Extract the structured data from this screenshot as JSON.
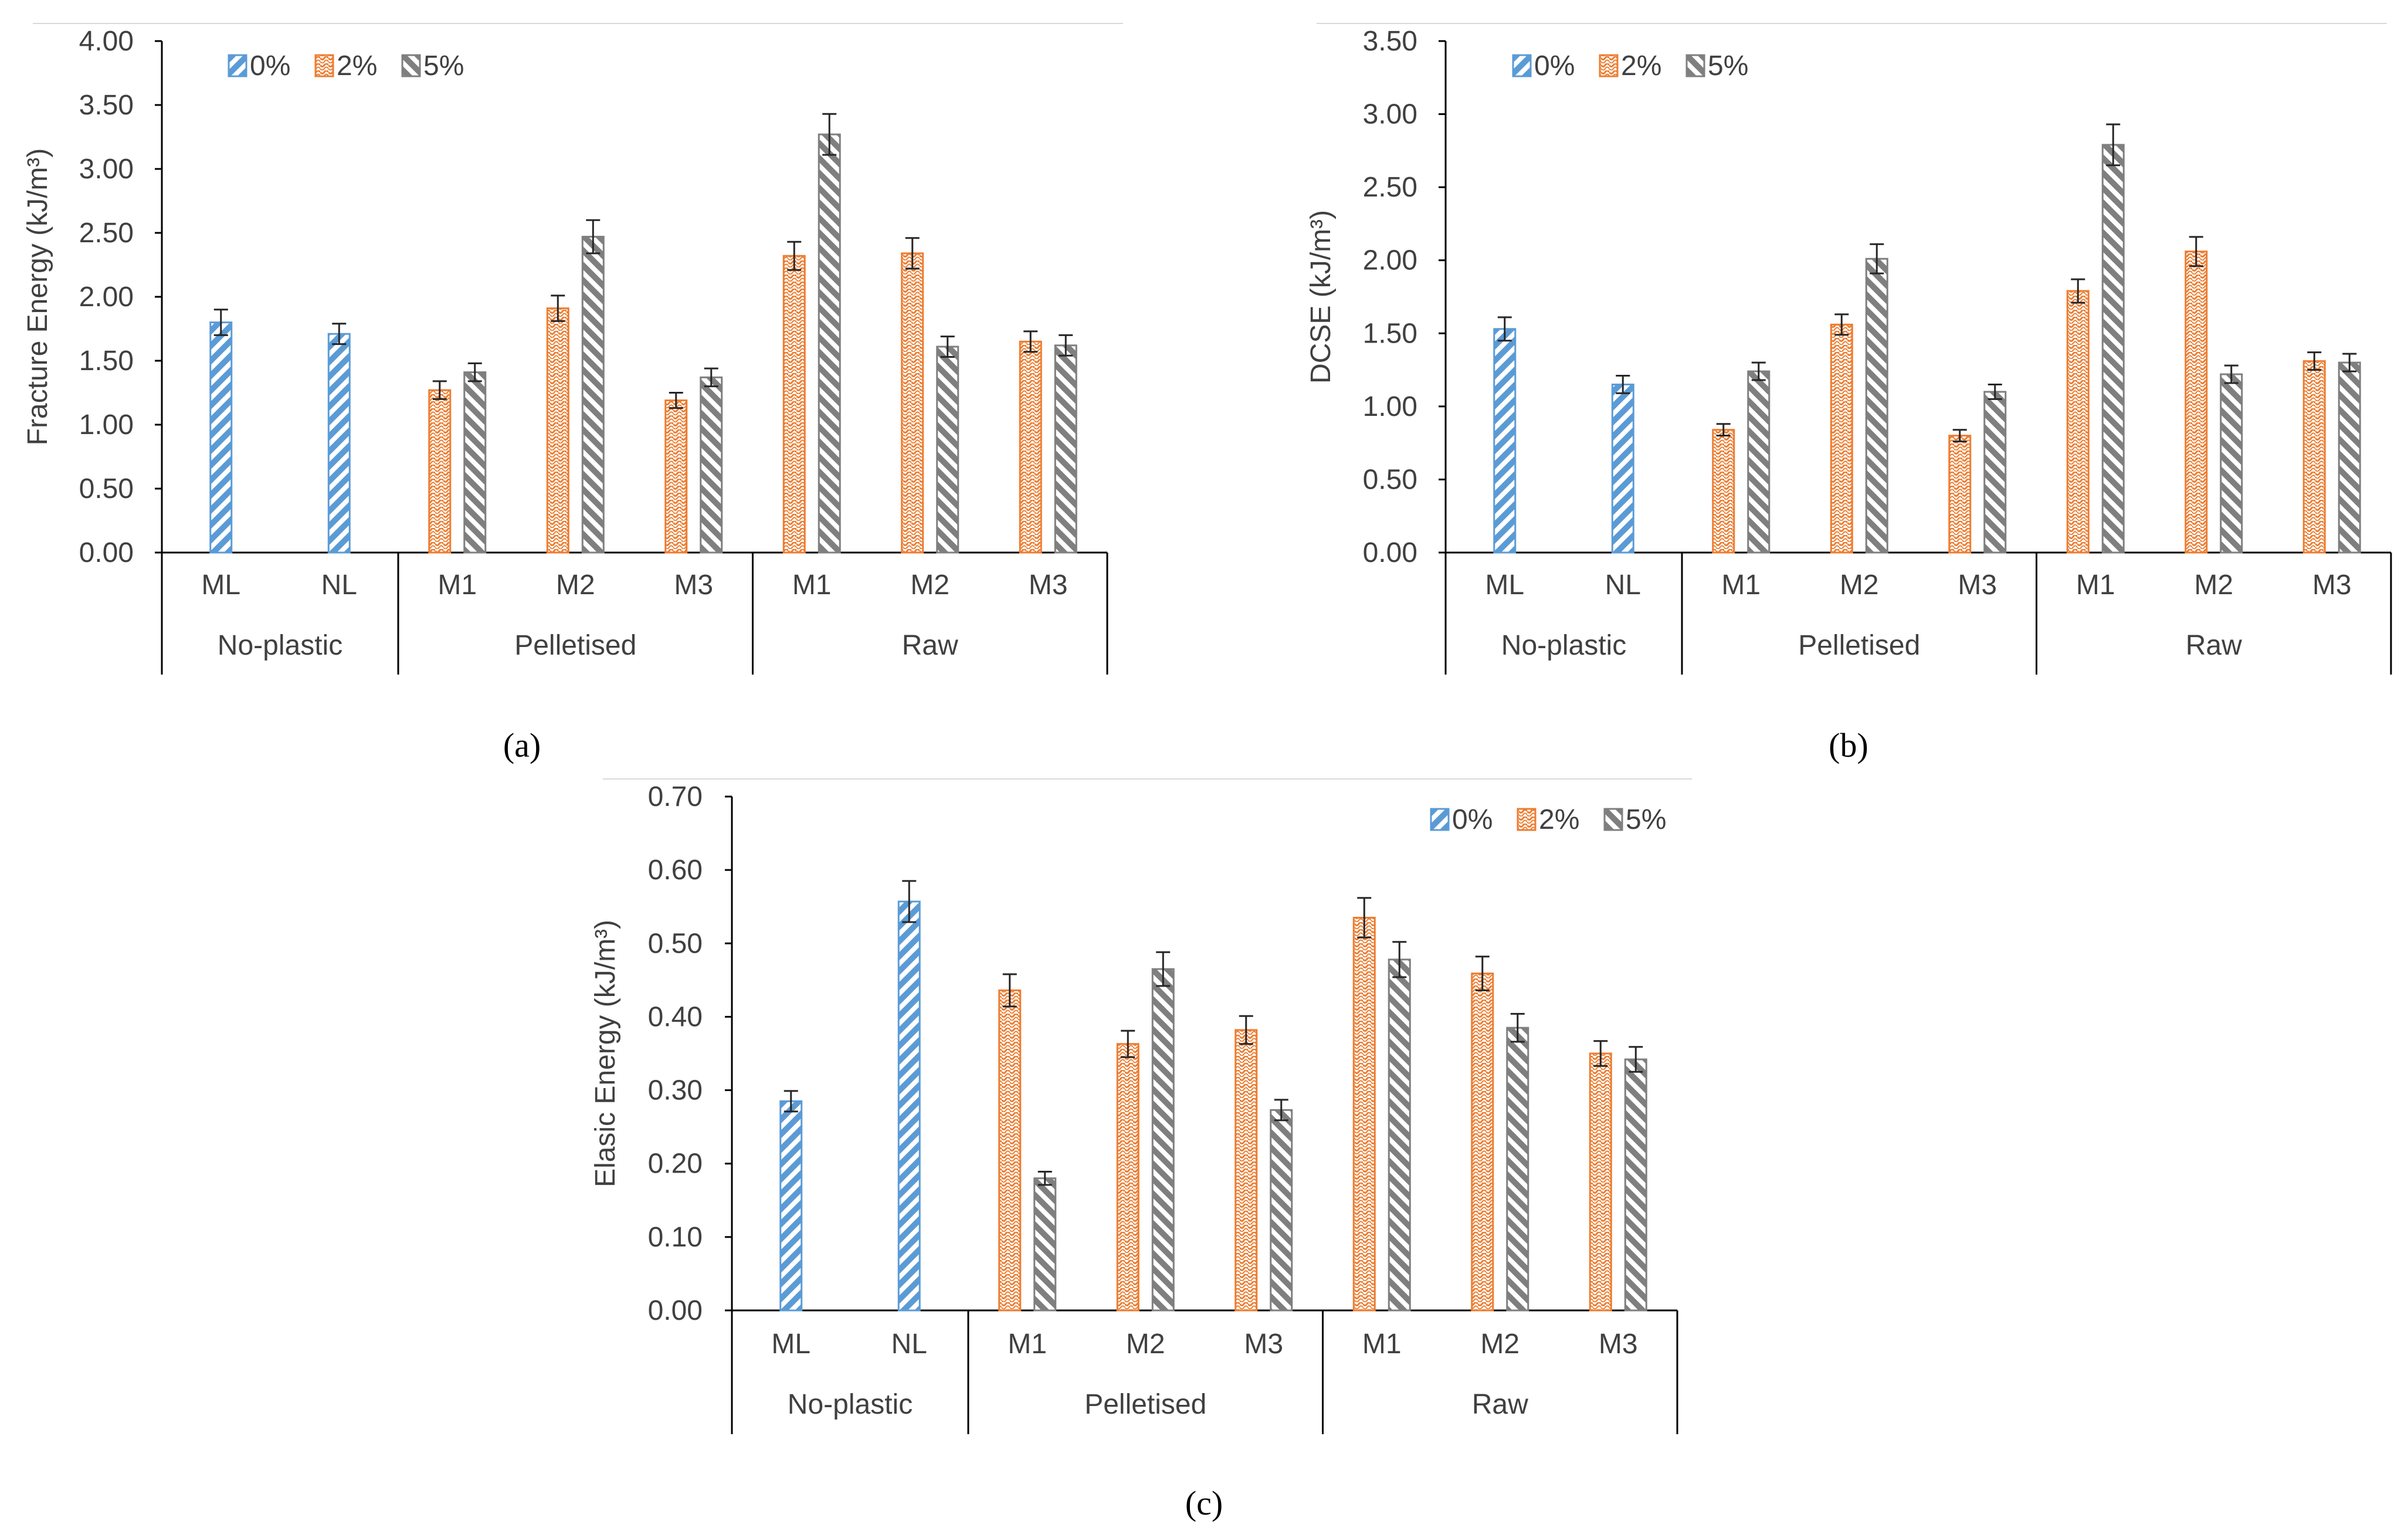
{
  "colors": {
    "s0": "#5b9bd5",
    "s2": "#ed7d31",
    "s5": "#7f7f7f",
    "axis": "#000000",
    "text": "#404040",
    "error": "#262626"
  },
  "chart_data": [
    {
      "type": "bar",
      "panel_label": "(a)",
      "ylabel": "Fracture Energy (kJ/m³)",
      "ylim": [
        0,
        4
      ],
      "ytick_step": 0.5,
      "yticks": [
        "0.00",
        "0.50",
        "1.00",
        "1.50",
        "2.00",
        "2.50",
        "3.00",
        "3.50",
        "4.00"
      ],
      "legend_position": "top-left",
      "groups": [
        {
          "label": "No-plastic",
          "categories": [
            "ML",
            "NL"
          ]
        },
        {
          "label": "Pelletised",
          "categories": [
            "M1",
            "M2",
            "M3"
          ]
        },
        {
          "label": "Raw",
          "categories": [
            "M1",
            "M2",
            "M3"
          ]
        }
      ],
      "series": [
        {
          "name": "0%",
          "values": [
            1.8,
            1.71,
            null,
            null,
            null,
            null,
            null,
            null
          ],
          "errors": [
            0.1,
            0.08,
            null,
            null,
            null,
            null,
            null,
            null
          ]
        },
        {
          "name": "2%",
          "values": [
            null,
            null,
            1.27,
            1.91,
            1.19,
            2.32,
            2.34,
            1.65
          ],
          "errors": [
            null,
            null,
            0.07,
            0.1,
            0.06,
            0.11,
            0.12,
            0.08
          ]
        },
        {
          "name": "5%",
          "values": [
            null,
            null,
            1.41,
            2.47,
            1.37,
            3.27,
            1.61,
            1.62
          ],
          "errors": [
            null,
            null,
            0.07,
            0.13,
            0.07,
            0.16,
            0.08,
            0.08
          ]
        }
      ]
    },
    {
      "type": "bar",
      "panel_label": "(b)",
      "ylabel": "DCSE (kJ/m³)",
      "ylim": [
        0,
        3.5
      ],
      "ytick_step": 0.5,
      "yticks": [
        "0.00",
        "0.50",
        "1.00",
        "1.50",
        "2.00",
        "2.50",
        "3.00",
        "3.50"
      ],
      "legend_position": "top-left",
      "groups": [
        {
          "label": "No-plastic",
          "categories": [
            "ML",
            "NL"
          ]
        },
        {
          "label": "Pelletised",
          "categories": [
            "M1",
            "M2",
            "M3"
          ]
        },
        {
          "label": "Raw",
          "categories": [
            "M1",
            "M2",
            "M3"
          ]
        }
      ],
      "series": [
        {
          "name": "0%",
          "values": [
            1.53,
            1.15,
            null,
            null,
            null,
            null,
            null,
            null
          ],
          "errors": [
            0.08,
            0.06,
            null,
            null,
            null,
            null,
            null,
            null
          ]
        },
        {
          "name": "2%",
          "values": [
            null,
            null,
            0.84,
            1.56,
            0.8,
            1.79,
            2.06,
            1.31
          ],
          "errors": [
            null,
            null,
            0.04,
            0.07,
            0.04,
            0.08,
            0.1,
            0.06
          ]
        },
        {
          "name": "5%",
          "values": [
            null,
            null,
            1.24,
            2.01,
            1.1,
            2.79,
            1.22,
            1.3
          ],
          "errors": [
            null,
            null,
            0.06,
            0.1,
            0.05,
            0.14,
            0.06,
            0.06
          ]
        }
      ]
    },
    {
      "type": "bar",
      "panel_label": "(c)",
      "ylabel": "Elasic Energy (kJ/m³)",
      "ylim": [
        0,
        0.7
      ],
      "ytick_step": 0.1,
      "yticks": [
        "0.00",
        "0.10",
        "0.20",
        "0.30",
        "0.40",
        "0.50",
        "0.60",
        "0.70"
      ],
      "legend_position": "top-right",
      "groups": [
        {
          "label": "No-plastic",
          "categories": [
            "ML",
            "NL"
          ]
        },
        {
          "label": "Pelletised",
          "categories": [
            "M1",
            "M2",
            "M3"
          ]
        },
        {
          "label": "Raw",
          "categories": [
            "M1",
            "M2",
            "M3"
          ]
        }
      ],
      "series": [
        {
          "name": "0%",
          "values": [
            0.285,
            0.557,
            null,
            null,
            null,
            null,
            null,
            null
          ],
          "errors": [
            0.014,
            0.028,
            null,
            null,
            null,
            null,
            null,
            null
          ]
        },
        {
          "name": "2%",
          "values": [
            null,
            null,
            0.436,
            0.363,
            0.382,
            0.535,
            0.459,
            0.35
          ],
          "errors": [
            null,
            null,
            0.022,
            0.018,
            0.019,
            0.027,
            0.023,
            0.017
          ]
        },
        {
          "name": "5%",
          "values": [
            null,
            null,
            0.18,
            0.465,
            0.273,
            0.478,
            0.385,
            0.342
          ],
          "errors": [
            null,
            null,
            0.009,
            0.023,
            0.014,
            0.024,
            0.019,
            0.017
          ]
        }
      ]
    }
  ]
}
